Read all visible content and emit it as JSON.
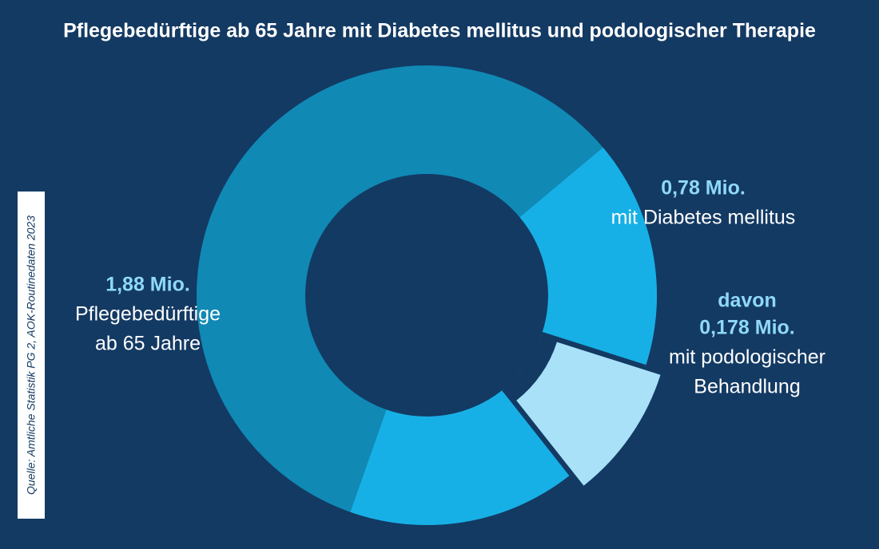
{
  "chart_data": {
    "type": "donut",
    "title": "Pflegebedürftige ab 65 Jahre mit Diabetes mellitus und podologischer Therapie",
    "source": "Quelle: Amtliche Statistik PG 2, AOK-Routinedaten 2023",
    "segments": [
      {
        "label_lines": [
          "Pflegebedürftige",
          "ab 65 Jahre"
        ],
        "value": 1.88,
        "value_label": "1,88 Mio.",
        "color": "#1089b5"
      },
      {
        "label_lines": [
          "mit Diabetes mellitus"
        ],
        "value": 0.78,
        "value_label": "0,78 Mio.",
        "color": "#17b0e6"
      },
      {
        "prefix": "davon",
        "label_lines": [
          "mit podologischer",
          "Behandlung"
        ],
        "value": 0.178,
        "value_label": "0,178 Mio.",
        "color": "#a9e1f9",
        "exploded": true
      }
    ]
  }
}
